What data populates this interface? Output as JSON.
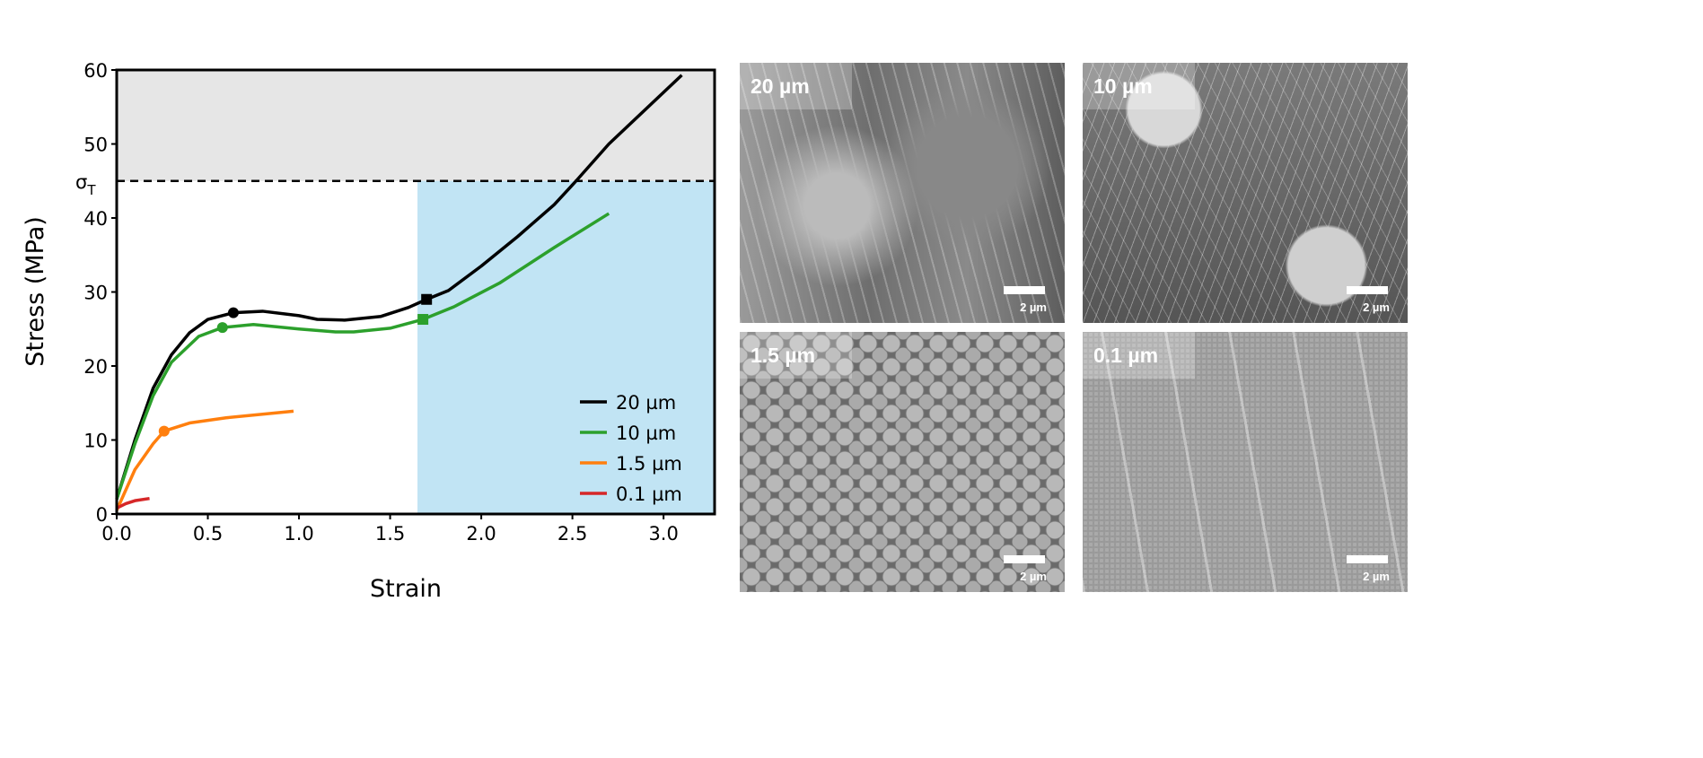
{
  "chart_data": {
    "type": "line",
    "xlabel": "Strain",
    "ylabel": "Stress (MPa)",
    "xlim": [
      0,
      3.28
    ],
    "ylim": [
      0,
      60
    ],
    "xticks": [
      "0.0",
      "0.5",
      "1.0",
      "1.5",
      "2.0",
      "2.5",
      "3.0"
    ],
    "yticks": [
      "0",
      "10",
      "20",
      "30",
      "40",
      "50",
      "60"
    ],
    "threshold": {
      "label": "σ",
      "subscript": "T",
      "value": 45
    },
    "regions": [
      {
        "name": "above-threshold",
        "x": [
          0,
          3.28
        ],
        "y": [
          45,
          60
        ],
        "color": "#e6e6e6"
      },
      {
        "name": "strain-hardening",
        "x": [
          1.65,
          3.28
        ],
        "y": [
          0,
          45
        ],
        "color": "#c1e4f4"
      }
    ],
    "legend_position": "bottom-right",
    "series": [
      {
        "name": "20 µm",
        "color": "#000000",
        "x": [
          0,
          0.1,
          0.2,
          0.3,
          0.4,
          0.5,
          0.64,
          0.8,
          1.0,
          1.1,
          1.25,
          1.45,
          1.6,
          1.7,
          1.82,
          2.0,
          2.2,
          2.4,
          2.52,
          2.7,
          3.1
        ],
        "y": [
          2,
          10,
          17,
          21.5,
          24.5,
          26.3,
          27.2,
          27.4,
          26.8,
          26.3,
          26.2,
          26.7,
          27.9,
          29,
          30.2,
          33.5,
          37.5,
          41.8,
          45,
          50,
          59.3
        ],
        "circle_marker": [
          0.64,
          27.2
        ],
        "square_marker": [
          1.7,
          29
        ]
      },
      {
        "name": "10 µm",
        "color": "#2ca02c",
        "x": [
          0,
          0.1,
          0.2,
          0.3,
          0.45,
          0.58,
          0.75,
          1.0,
          1.2,
          1.3,
          1.5,
          1.68,
          1.85,
          2.1,
          2.4,
          2.7
        ],
        "y": [
          2,
          9.5,
          16,
          20.5,
          24,
          25.2,
          25.6,
          25,
          24.6,
          24.6,
          25.1,
          26.3,
          28,
          31.2,
          36,
          40.6
        ],
        "circle_marker": [
          0.58,
          25.2
        ],
        "square_marker": [
          1.68,
          26.3
        ]
      },
      {
        "name": "1.5 µm",
        "color": "#ff7f0e",
        "x": [
          0,
          0.1,
          0.2,
          0.26,
          0.4,
          0.6,
          0.97
        ],
        "y": [
          0.5,
          6,
          9.5,
          11.2,
          12.3,
          13,
          13.9
        ],
        "circle_marker": [
          0.26,
          11.2
        ]
      },
      {
        "name": "0.1 µm",
        "color": "#d62728",
        "x": [
          0,
          0.05,
          0.1,
          0.18
        ],
        "y": [
          0.8,
          1.4,
          1.8,
          2.1
        ]
      }
    ]
  },
  "sem_images": [
    {
      "label": "20 µm",
      "scale": "2 µm"
    },
    {
      "label": "10 µm",
      "scale": "2 µm"
    },
    {
      "label": "1.5 µm",
      "scale": "2 µm"
    },
    {
      "label": "0.1 µm",
      "scale": "2 µm"
    }
  ]
}
